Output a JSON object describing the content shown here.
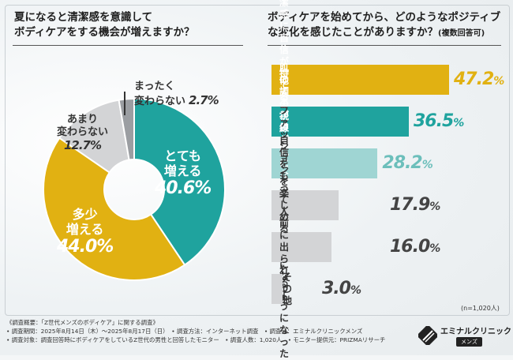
{
  "left_question": {
    "line1": "夏になると清潔感を意識して",
    "line2": "ボディケアをする機会が増えますか？"
  },
  "right_question": {
    "line1": "ボディケアを始めてから、どのようなポジティブ",
    "line2": "な変化を感じたことがありますか？",
    "line2_sub": "(複数回答可)"
  },
  "chart_data": [
    {
      "type": "pie",
      "title": "夏になると清潔感を意識してボディケアをする機会が増えますか？",
      "slices": [
        {
          "label": "とても増える",
          "value": 40.6,
          "label_lines": [
            "とても",
            "増える"
          ],
          "pct": "40.6%",
          "color": "#1fa39e"
        },
        {
          "label": "多少増える",
          "value": 44.0,
          "label_lines": [
            "多少",
            "増える"
          ],
          "pct": "44.0%",
          "color": "#e1b112"
        },
        {
          "label": "あまり変わらない",
          "value": 12.7,
          "label_lines": [
            "あまり",
            "変わらない"
          ],
          "pct": "12.7%",
          "color": "#d3d4d6"
        },
        {
          "label": "まったく変わらない",
          "value": 2.7,
          "label_lines": [
            "まったく",
            "変わらない"
          ],
          "pct": "2.7%",
          "color": "#9b9ea2"
        }
      ]
    },
    {
      "type": "bar",
      "orientation": "horizontal",
      "title": "ボディケアを始めてから、どのようなポジティブな変化を感じたことがありますか？(複数回答可)",
      "unit": "%",
      "categories": [
        "清潔感に自信が持てるようになった",
        "肌の調子が良くなった",
        "他人の視線が気にならなくなった",
        "ファッションを楽しめるようになった",
        "自信をもって人前に出られるようになった",
        "その他"
      ],
      "category_display": [
        "清潔感に自信が\n持てるようになった",
        "肌の調子が良くなった",
        "他人の視線が\n気にならなくなった",
        "ファッションを\n楽しめるようになった",
        "自信をもって人前に\n出られるようになった",
        "その他"
      ],
      "values": [
        47.2,
        36.5,
        28.2,
        17.9,
        16.0,
        3.0
      ],
      "value_labels": [
        "47.2",
        "36.5",
        "28.2",
        "17.9",
        "16.0",
        "3.0"
      ],
      "colors": [
        "#e1b112",
        "#1fa39e",
        "#9fd5d3",
        "#d3d4d6",
        "#d3d4d6",
        "#d3d4d6"
      ],
      "label_colors": [
        "#ffffff",
        "#ffffff",
        "#ffffff",
        "#333333",
        "#333333",
        "#333333"
      ],
      "pct_colors": [
        "#e1b112",
        "#1fa39e",
        "#6cbfbb",
        "#444444",
        "#444444",
        "#444444"
      ],
      "n_note": "(n=1,020人)"
    }
  ],
  "footer": {
    "line1": "《調査概要：「Z世代メンズのボディケア」に関する調査》",
    "line2": "• 調査期間：2025年8月14日（木）〜2025年8月17日（日）　• 調査方法：インターネット調査　• 調査元：エミナルクリニックメンズ",
    "line3": "• 調査対象：調査回答時にボディケアをしているZ世代の男性と回答したモニター　• 調査人数：1,020人　• モニター提供元：PRIZMAリサーチ"
  },
  "logo": {
    "name": "エミナルクリニック",
    "sub": "メンズ"
  }
}
